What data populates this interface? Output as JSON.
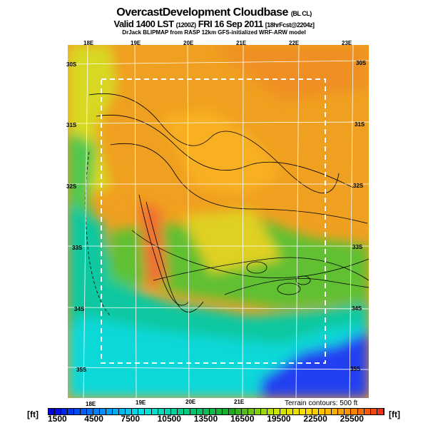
{
  "header": {
    "title": "OvercastDevelopment Cloudbase",
    "title_code": "(BL CL)",
    "valid": "Valid 1400 LST",
    "valid_z": "(1200Z)",
    "valid_date": "FRI 16 Sep 2011",
    "forecast": "[18hrFcst@2204z]",
    "model": "DrJack BLIPMAP from RASP 12km GFS-initialized WRF-ARW model"
  },
  "map": {
    "lon_top": [
      "18E",
      "19E",
      "20E",
      "21E",
      "22E",
      "23E"
    ],
    "lon_bottom": [
      "18E",
      "19E",
      "20E",
      "21E"
    ],
    "lat_left": [
      "30S",
      "31S",
      "32S",
      "33S",
      "34S",
      "35S"
    ],
    "lat_right": [
      "30S",
      "31S",
      "32S",
      "33S",
      "34S",
      "35S"
    ],
    "terrain_note": "Terrain contours: 500 ft"
  },
  "colorbar": {
    "unit": "[ft]",
    "labels": [
      "1500",
      "4500",
      "7500",
      "10500",
      "13500",
      "16500",
      "19500",
      "22500",
      "25500"
    ],
    "segments": 52
  }
}
